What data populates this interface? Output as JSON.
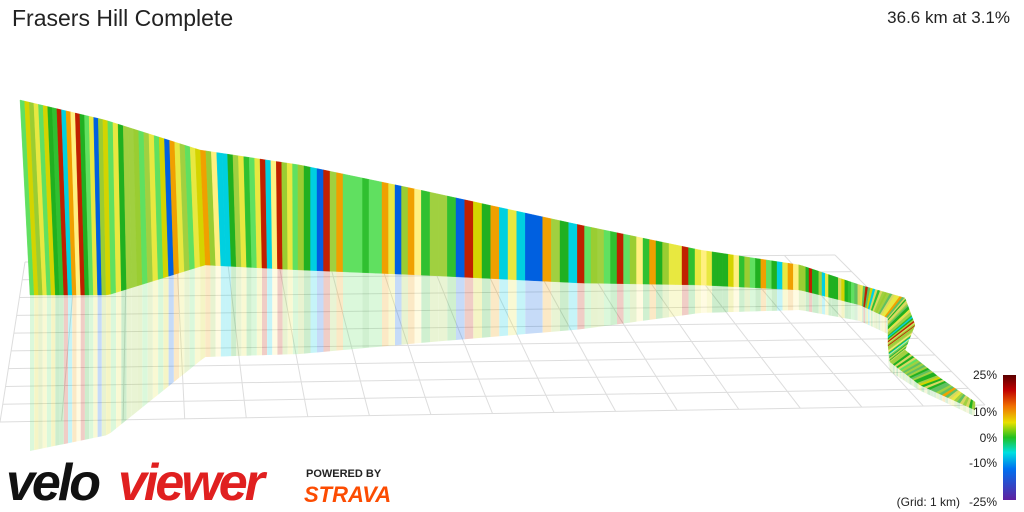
{
  "header": {
    "title": "Frasers Hill Complete",
    "summary": "36.6 km at 3.1%"
  },
  "legend": {
    "labels": [
      "25%",
      "10%",
      "0%",
      "-10%",
      "-25%"
    ],
    "grid_note": "(Grid: 1 km)"
  },
  "branding": {
    "logo_left": "velo",
    "logo_right": "viewer",
    "powered_by": "POWERED BY",
    "partner": "STRAVA"
  }
}
